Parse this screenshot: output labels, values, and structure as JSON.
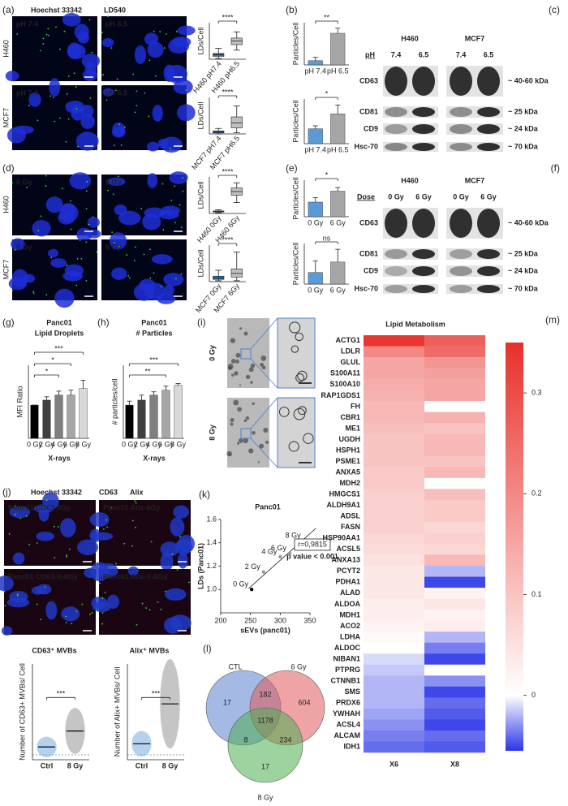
{
  "a": {
    "label": "(a)",
    "stains": [
      "Hoechst 33342",
      "LD540"
    ],
    "rows": [
      "H460",
      "MCF7"
    ],
    "images": [
      "pH 7.4",
      "pH 6.5",
      "pH 7.4",
      "pH 6.5"
    ],
    "plots": [
      {
        "type": "box",
        "ylabel": "LDs/Cell",
        "categories": [
          "H460 pH7.4",
          "H460 pH6.5"
        ],
        "significance": "****",
        "ylim": [
          0,
          100
        ],
        "colors": [
          "#2e75b6",
          "#bfbfbf"
        ],
        "boxes": [
          {
            "min": 2,
            "q1": 8,
            "median": 12,
            "q3": 16,
            "max": 30
          },
          {
            "min": 25,
            "q1": 40,
            "median": 50,
            "q3": 58,
            "max": 75
          }
        ]
      },
      {
        "type": "box",
        "ylabel": "LDs/Cell",
        "categories": [
          "MCF7 pH7.4",
          "MCF7 pH6.5"
        ],
        "significance": "****",
        "ylim": [
          0,
          300
        ],
        "colors": [
          "#2e75b6",
          "#bfbfbf"
        ],
        "boxes": [
          {
            "min": 0,
            "q1": 8,
            "median": 15,
            "q3": 25,
            "max": 45
          },
          {
            "min": 10,
            "q1": 50,
            "median": 90,
            "q3": 140,
            "max": 230
          }
        ]
      }
    ]
  },
  "b": {
    "label": "(b)",
    "plots": [
      {
        "type": "bar",
        "ylabel": "Particles/Cell",
        "categories": [
          "pH 7.4",
          "pH 6.5"
        ],
        "values": [
          1,
          7.5
        ],
        "errors": [
          0.8,
          1.2
        ],
        "ylim": [
          0,
          10
        ],
        "colors": [
          "#5b9bd5",
          "#a6a6a6"
        ],
        "significance": "**"
      },
      {
        "type": "bar",
        "ylabel": "Particles/Cell",
        "categories": [
          "pH 7.4",
          "pH 6.5"
        ],
        "values": [
          1,
          2
        ],
        "errors": [
          0.2,
          0.6
        ],
        "ylim": [
          0,
          3
        ],
        "colors": [
          "#5b9bd5",
          "#a6a6a6"
        ],
        "significance": "*"
      }
    ]
  },
  "c": {
    "label": "(c)",
    "cells": [
      "H460",
      "MCF7"
    ],
    "condition": "pH",
    "lanes": [
      "7.4",
      "6.5",
      "7.4",
      "6.5"
    ],
    "proteins": [
      "CD63",
      "CD81",
      "CD9",
      "Hsc-70"
    ],
    "sizes": [
      "~ 40-60 kDa",
      "~ 25 kDa",
      "~ 24 kDa",
      "~ 70 kDa"
    ]
  },
  "d": {
    "label": "(d)",
    "rows": [
      "H460",
      "MCF7"
    ],
    "images": [
      "0 Gy",
      "6 Gy",
      "0 Gy",
      "6 Gy"
    ],
    "plots": [
      {
        "type": "box",
        "ylabel": "LDs/Cell",
        "categories": [
          "H460 0Gy",
          "H460 6Gy"
        ],
        "significance": "****",
        "ylim": [
          0,
          500
        ],
        "colors": [
          "#2e75b6",
          "#bfbfbf"
        ],
        "boxes": [
          {
            "min": 10,
            "q1": 20,
            "median": 25,
            "q3": 35,
            "max": 50
          },
          {
            "min": 150,
            "q1": 250,
            "median": 300,
            "q3": 350,
            "max": 420
          }
        ]
      },
      {
        "type": "box",
        "ylabel": "LDs/Cell",
        "categories": [
          "MCF7 0Gy",
          "MCF7 6Gy"
        ],
        "significance": "****",
        "ylim": [
          0,
          80
        ],
        "colors": [
          "#2e75b6",
          "#bfbfbf"
        ],
        "boxes": [
          {
            "min": 2,
            "q1": 5,
            "median": 8,
            "q3": 12,
            "max": 25
          },
          {
            "min": 2,
            "q1": 10,
            "median": 18,
            "q3": 28,
            "max": 65
          }
        ]
      }
    ]
  },
  "e": {
    "label": "(e)",
    "plots": [
      {
        "type": "bar",
        "ylabel": "Particles/Cell",
        "categories": [
          "0 Gy",
          "6 Gy"
        ],
        "values": [
          1,
          1.75
        ],
        "errors": [
          0.3,
          0.25
        ],
        "ylim": [
          0,
          2.5
        ],
        "colors": [
          "#5b9bd5",
          "#a6a6a6"
        ],
        "significance": "*"
      },
      {
        "type": "bar",
        "ylabel": "Particles/Cell",
        "categories": [
          "0 Gy",
          "6 Gy"
        ],
        "values": [
          1,
          1.9
        ],
        "errors": [
          1,
          1.1
        ],
        "ylim": [
          0,
          3.5
        ],
        "colors": [
          "#5b9bd5",
          "#a6a6a6"
        ],
        "significance": "ns"
      }
    ]
  },
  "f": {
    "label": "(f)",
    "cells": [
      "H460",
      "MCF7"
    ],
    "condition": "Dose",
    "lanes": [
      "0 Gy",
      "6 Gy",
      "0 Gy",
      "6 Gy"
    ],
    "proteins": [
      "CD63",
      "CD81",
      "CD9",
      "Hsc-70"
    ],
    "sizes": [
      "~ 40-60 kDa",
      "~ 25 kDa",
      "~ 24 kDa",
      "~ 70 kDa"
    ]
  },
  "g": {
    "label": "(g)",
    "title": [
      "Panc01",
      "Lipid Droplets"
    ],
    "xlabel": "X-rays",
    "plot": {
      "type": "bar",
      "ylabel": "MFI Ratio",
      "categories": [
        "0 Gy",
        "2 Gy",
        "4 Gy",
        "6 Gy",
        "8 Gy"
      ],
      "values": [
        1,
        1.15,
        1.3,
        1.3,
        1.5
      ],
      "errors": [
        0,
        0.1,
        0.12,
        0.15,
        0.25
      ],
      "ylim": [
        0,
        2.2
      ],
      "colors": [
        "#000000",
        "#404040",
        "#7f7f7f",
        "#a6a6a6",
        "#d9d9d9"
      ],
      "significance": [
        null,
        null,
        "*",
        "*",
        "***"
      ]
    }
  },
  "h": {
    "label": "(h)",
    "title": [
      "Panc01",
      "# Particles"
    ],
    "xlabel": "X-rays",
    "plot": {
      "type": "bar",
      "ylabel": "# particles/cell",
      "categories": [
        "0 Gy",
        "2 Gy",
        "4 Gy",
        "6 Gy",
        "8 Gy"
      ],
      "values": [
        1,
        1.15,
        1.3,
        1.45,
        1.6
      ],
      "errors": [
        0.12,
        0.15,
        0.1,
        0.12,
        0.05
      ],
      "ylim": [
        0,
        2.2
      ],
      "colors": [
        "#000000",
        "#404040",
        "#7f7f7f",
        "#a6a6a6",
        "#d9d9d9"
      ],
      "significance": [
        null,
        null,
        null,
        "**",
        "***"
      ]
    }
  },
  "i": {
    "label": "(i)",
    "rows": [
      "0 Gy",
      "8 Gy"
    ]
  },
  "j": {
    "label": "(j)",
    "stains": [
      "Hoechst 33342",
      "CD63",
      "Alix"
    ],
    "images": [
      "Panc01 CD63-0Gy",
      "Panc01 Alix-0Gy",
      "Panc01 CD63-X-8Gy",
      "Panc01 Alix-X-8Gy"
    ],
    "plots": [
      {
        "type": "dot",
        "title": "CD63⁺ MVBs",
        "ylabel": "Number of CD63+ MVBs/ Cell",
        "categories": [
          "Ctrl",
          "8 Gy"
        ],
        "values": [
          20,
          45
        ],
        "ylim": [
          0,
          150
        ],
        "colors": [
          "#5b9bd5",
          "#7f7f7f"
        ],
        "significance": "***"
      },
      {
        "type": "dot",
        "title": "Alix⁺ MVBs",
        "ylabel": "Number of Alix+ MVBs/ Cell",
        "categories": [
          "Ctrl",
          "8 Gy"
        ],
        "values": [
          10,
          35
        ],
        "ylim": [
          0,
          60
        ],
        "colors": [
          "#5b9bd5",
          "#7f7f7f"
        ],
        "significance": "***"
      }
    ]
  },
  "k": {
    "label": "(k)",
    "title": "Panc01",
    "xlabel": "sEVs (panc01)",
    "ylabel": "LDs (Panc01)",
    "annotations": [
      "r=0,9815",
      "p value < 0.001"
    ],
    "points": [
      "0 Gy",
      "2 Gy",
      "4 Gy",
      "6 Gy",
      "8 Gy"
    ],
    "x": [
      252,
      272,
      300,
      316,
      340
    ],
    "y": [
      1,
      1.15,
      1.28,
      1.31,
      1.42
    ],
    "xlim": [
      200,
      350
    ],
    "xticks": [
      200,
      250,
      300,
      350
    ],
    "ylim": [
      0.8,
      1.6
    ],
    "yticks": [
      {
        "value": 1,
        "label": "1.0"
      },
      1.2,
      1.4,
      1.6
    ]
  },
  "l": {
    "label": "(l)",
    "sets": [
      "CTL",
      "6 Gy",
      "8 Gy"
    ],
    "colors": [
      "#5b7fd0",
      "#e05a5a",
      "#4caf50"
    ],
    "regions": [
      17,
      182,
      604,
      1178,
      8,
      234,
      17
    ]
  },
  "m": {
    "label": "(m)",
    "title": "Lipid Metabolism",
    "clim": [
      -0.055,
      0.35
    ],
    "cticks": [
      0,
      0.1,
      0.2,
      0.3
    ],
    "categories": [
      "ACTG1",
      "LDLR",
      "GLUL",
      "S100A11",
      "S100A10",
      "RAP1GDS1",
      "FH",
      "CBR1",
      "ME1",
      "UGDH",
      "HSPH1",
      "PSME1",
      "ANXA5",
      "MDH2",
      "HMGCS1",
      "ALDH9A1",
      "ADSL",
      "FASN",
      "HSP90AA1",
      "ACSL5",
      "ANXA13",
      "PCYT2",
      "PDHA1",
      "ALAD",
      "ALDOA",
      "MDH1",
      "ACO2",
      "LDHA",
      "ALDOC",
      "NIBAN1",
      "PTPRG",
      "CTNNB1",
      "SMS",
      "PRDX6",
      "YWHAH",
      "ACSL4",
      "ALCAM",
      "IDH1"
    ],
    "series": [
      {
        "name": "X6",
        "values": [
          0.34,
          0.2,
          0.15,
          0.15,
          0.14,
          0.13,
          0.12,
          0.12,
          0.11,
          0.1,
          0.1,
          0.1,
          0.09,
          0.09,
          0.08,
          0.08,
          0.08,
          0.08,
          0.07,
          0.06,
          0.05,
          0.04,
          0.04,
          0.04,
          0.03,
          0.03,
          0.02,
          0.01,
          0,
          -0.01,
          -0.015,
          -0.02,
          -0.02,
          -0.02,
          -0.025,
          -0.03,
          -0.035,
          -0.04
        ]
      },
      {
        "name": "X8",
        "values": [
          0.27,
          0.25,
          0.18,
          0.16,
          0.15,
          0.15,
          0,
          0.13,
          0.1,
          0.12,
          0.12,
          0.1,
          0.12,
          0,
          0.11,
          0.09,
          0.09,
          0.07,
          0.08,
          0.07,
          0.12,
          -0.02,
          -0.05,
          0.02,
          0.04,
          0.02,
          0.03,
          -0.02,
          -0.035,
          -0.05,
          0,
          -0.03,
          -0.05,
          -0.04,
          -0.045,
          -0.05,
          -0.04,
          -0.045
        ]
      }
    ]
  }
}
